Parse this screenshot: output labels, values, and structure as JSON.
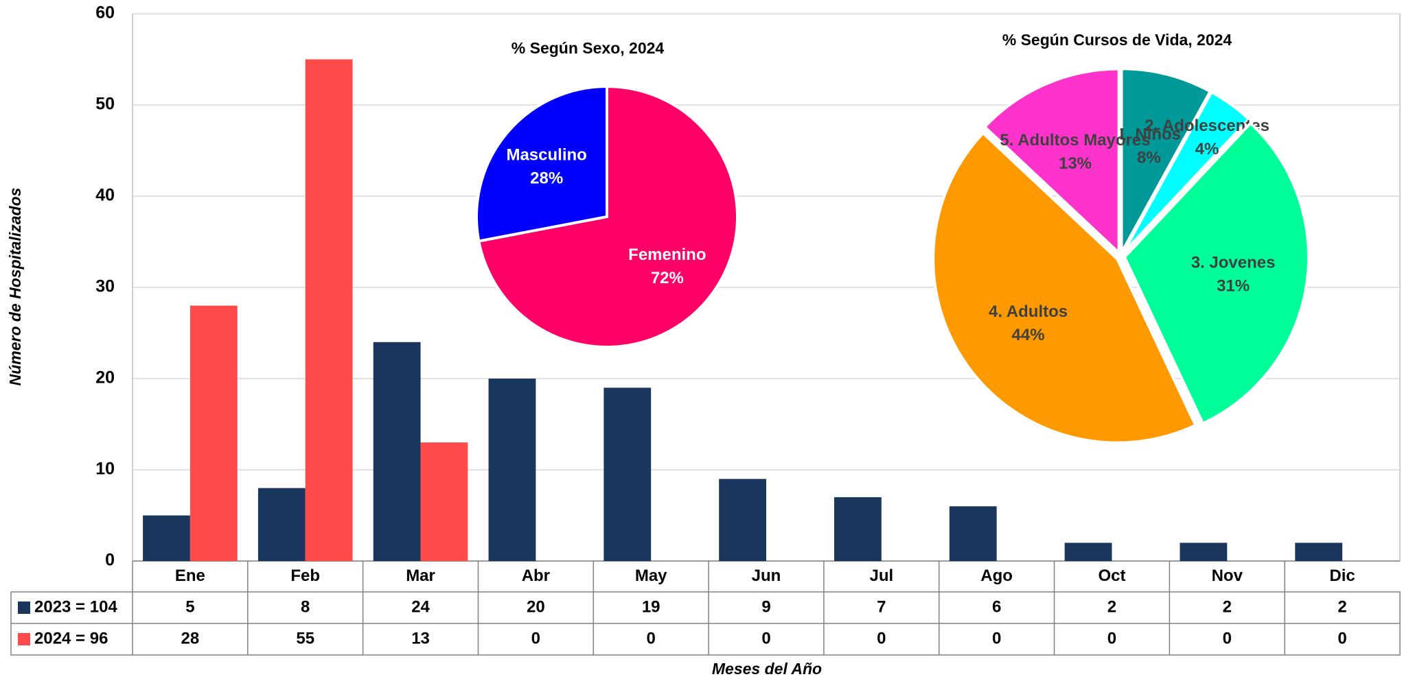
{
  "chart_data": [
    {
      "type": "bar",
      "y_label": "Número de Hospitalizados",
      "x_label": "Meses del Año",
      "categories": [
        "Ene",
        "Feb",
        "Mar",
        "Abr",
        "May",
        "Jun",
        "Jul",
        "Ago",
        "Oct",
        "Nov",
        "Dic"
      ],
      "series": [
        {
          "name": "2023 = 104",
          "color": "#1a365d",
          "values": [
            5,
            8,
            24,
            20,
            19,
            9,
            7,
            6,
            2,
            2,
            2
          ]
        },
        {
          "name": "2024 = 96",
          "color": "#ff4b4b",
          "values": [
            28,
            55,
            13,
            0,
            0,
            0,
            0,
            0,
            0,
            0,
            0
          ]
        }
      ],
      "ylim": [
        0,
        60
      ],
      "yticks": [
        0,
        10,
        20,
        30,
        40,
        50,
        60
      ],
      "grid": true
    },
    {
      "type": "pie",
      "title": "% Según Sexo, 2024",
      "categories": [
        "Femenino",
        "Masculino"
      ],
      "values": [
        72,
        28
      ],
      "value_labels": [
        "72%",
        "28%"
      ],
      "colors": [
        "#ff0066",
        "#0000ff"
      ]
    },
    {
      "type": "pie",
      "title": "% Según Cursos de Vida, 2024",
      "categories": [
        "1. Niños",
        "2. Adolescentes",
        "3. Jovenes",
        "4. Adultos",
        "5. Adultos Mayores"
      ],
      "values": [
        8,
        4,
        31,
        44,
        13
      ],
      "value_labels": [
        "8%",
        "4%",
        "31%",
        "44%",
        "13%"
      ],
      "colors": [
        "#009999",
        "#00ffff",
        "#00ff99",
        "#ff9900",
        "#ff33cc"
      ]
    }
  ]
}
